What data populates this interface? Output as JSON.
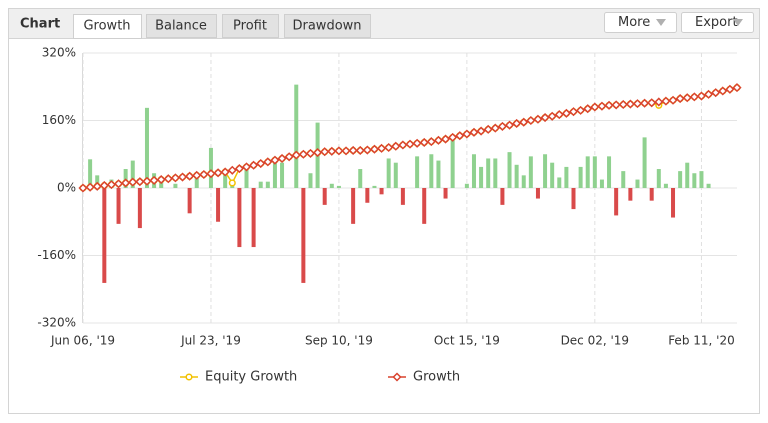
{
  "header": {
    "label": "Chart",
    "tabs": [
      "Growth",
      "Balance",
      "Profit",
      "Drawdown"
    ],
    "active_tab": 0,
    "buttons": [
      "More",
      "Export"
    ]
  },
  "chart_data": {
    "type": "combo",
    "categories": [
      "Jun 06, '19",
      null,
      null,
      null,
      null,
      null,
      null,
      null,
      null,
      null,
      null,
      null,
      null,
      null,
      null,
      null,
      null,
      null,
      "Jul 23, '19",
      null,
      null,
      null,
      null,
      null,
      null,
      null,
      null,
      null,
      null,
      null,
      null,
      null,
      null,
      null,
      null,
      null,
      "Sep 10, '19",
      null,
      null,
      null,
      null,
      null,
      null,
      null,
      null,
      null,
      null,
      null,
      null,
      null,
      null,
      null,
      null,
      null,
      "Oct 15, '19",
      null,
      null,
      null,
      null,
      null,
      null,
      null,
      null,
      null,
      null,
      null,
      null,
      null,
      null,
      null,
      null,
      null,
      "Dec 02, '19",
      null,
      null,
      null,
      null,
      null,
      null,
      null,
      null,
      null,
      null,
      null,
      null,
      null,
      null,
      "Feb 11, '20",
      null,
      null,
      null,
      null,
      null
    ],
    "ylim": [
      -320,
      320
    ],
    "yticks": [
      {
        "value": -320,
        "label": "-320%"
      },
      {
        "value": -160,
        "label": "-160%"
      },
      {
        "value": 0,
        "label": "0%"
      },
      {
        "value": 160,
        "label": "160%"
      },
      {
        "value": 320,
        "label": "320%"
      }
    ],
    "grid": true,
    "legend": "bottom",
    "series": [
      {
        "kind": "bar",
        "color": "#8fd18f",
        "negative_color": "#d94a4a",
        "values": [
          null,
          68,
          30,
          -225,
          20,
          -85,
          45,
          65,
          -95,
          190,
          35,
          25,
          null,
          10,
          null,
          -60,
          30,
          null,
          95,
          -80,
          35,
          20,
          -140,
          45,
          -140,
          15,
          15,
          65,
          60,
          null,
          245,
          -225,
          35,
          155,
          -40,
          10,
          5,
          null,
          -85,
          45,
          -35,
          5,
          -15,
          70,
          60,
          -40,
          null,
          75,
          -85,
          80,
          65,
          -25,
          120,
          null,
          10,
          80,
          50,
          70,
          70,
          -40,
          85,
          55,
          30,
          75,
          -25,
          80,
          60,
          25,
          50,
          -50,
          50,
          75,
          75,
          20,
          75,
          -65,
          40,
          -30,
          20,
          120,
          -30,
          45,
          10,
          -70,
          40,
          60,
          35,
          40,
          10,
          null,
          null,
          null,
          null
        ]
      },
      {
        "kind": "line",
        "name": "Equity Growth",
        "color": "#f2c200",
        "marker": "circle",
        "values": [
          0,
          2,
          4,
          6,
          8,
          10,
          12,
          14,
          15,
          16,
          18,
          20,
          22,
          24,
          26,
          28,
          30,
          32,
          34,
          36,
          38,
          12,
          46,
          50,
          54,
          58,
          62,
          66,
          70,
          74,
          78,
          80,
          82,
          84,
          86,
          87,
          88,
          88,
          89,
          89,
          90,
          92,
          94,
          96,
          99,
          102,
          104,
          106,
          108,
          110,
          113,
          116,
          120,
          124,
          128,
          132,
          135,
          139,
          142,
          146,
          149,
          153,
          156,
          160,
          163,
          167,
          170,
          174,
          177,
          181,
          184,
          188,
          192,
          194,
          196,
          197,
          198,
          199,
          200,
          201,
          202,
          196,
          206,
          208,
          212,
          214,
          216,
          218,
          222,
          226,
          230,
          234,
          238
        ]
      },
      {
        "kind": "line",
        "name": "Growth",
        "color": "#d9432f",
        "marker": "diamond",
        "values": [
          0,
          2,
          4,
          6,
          8,
          10,
          12,
          14,
          15,
          16,
          18,
          20,
          22,
          24,
          26,
          28,
          30,
          32,
          34,
          36,
          38,
          42,
          46,
          50,
          54,
          58,
          62,
          66,
          70,
          74,
          78,
          80,
          82,
          84,
          86,
          87,
          88,
          88,
          89,
          89,
          90,
          92,
          94,
          96,
          99,
          102,
          104,
          106,
          108,
          110,
          113,
          116,
          120,
          124,
          128,
          132,
          135,
          139,
          142,
          146,
          149,
          153,
          156,
          160,
          163,
          167,
          170,
          174,
          177,
          181,
          184,
          188,
          192,
          194,
          196,
          197,
          198,
          199,
          200,
          201,
          202,
          204,
          206,
          208,
          212,
          214,
          216,
          218,
          222,
          226,
          230,
          234,
          238
        ]
      }
    ]
  }
}
